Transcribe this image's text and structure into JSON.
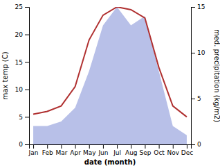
{
  "chart_data": {
    "type": "line",
    "categories": [
      "Jan",
      "Feb",
      "Mar",
      "Apr",
      "May",
      "Jun",
      "Jul",
      "Aug",
      "Sep",
      "Oct",
      "Nov",
      "Dec"
    ],
    "xlabel": "date (month)",
    "ylabel": "max temp (C)",
    "y2label": "med. precipitation (kg/m2)",
    "ylim": [
      0,
      25
    ],
    "yticks": [
      0,
      5,
      10,
      15,
      20,
      25
    ],
    "y2lim": [
      0,
      15
    ],
    "y2ticks": [
      0,
      5,
      10,
      15
    ],
    "series": [
      {
        "type": "area",
        "axis": "y2",
        "color": "#b8c0e8",
        "values": [
          2.0,
          2.0,
          2.5,
          4.0,
          8.0,
          13.0,
          15.0,
          13.0,
          14.0,
          8.0,
          2.0,
          1.0
        ]
      },
      {
        "type": "line",
        "color": "#b03030",
        "values": [
          5.5,
          6.0,
          7.0,
          10.5,
          19.0,
          23.5,
          25.0,
          24.5,
          23.0,
          14.0,
          7.0,
          5.0
        ]
      }
    ]
  }
}
